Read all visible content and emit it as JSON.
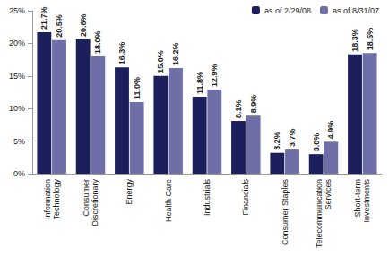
{
  "chart_data": {
    "type": "bar",
    "categories": [
      "Information Technology",
      "Consumer Discretionary",
      "Energy",
      "Health Care",
      "Industrials",
      "Financials",
      "Consumer Staples",
      "Telecommunication Services",
      "Short-term Investments"
    ],
    "series": [
      {
        "name": "as of 2/29/08",
        "color": "#1b1f5c",
        "values": [
          21.7,
          20.6,
          16.3,
          15.0,
          11.8,
          8.1,
          3.2,
          3.0,
          18.3
        ],
        "value_labels": [
          "21.7%",
          "20.6%",
          "16.3%",
          "15.0%",
          "11.8%",
          "8.1%",
          "3.2%",
          "3.0%",
          "18.3%"
        ]
      },
      {
        "name": "as of 8/31/07",
        "color": "#6e6fa6",
        "values": [
          20.5,
          18.0,
          11.0,
          16.2,
          12.9,
          8.9,
          3.7,
          4.9,
          18.5
        ],
        "value_labels": [
          "20.5%",
          "18.0%",
          "11.0%",
          "16.2%",
          "12.9%",
          "8.9%",
          "3.7%",
          "4.9%",
          "18.5%"
        ]
      }
    ],
    "ylim": [
      0,
      25
    ],
    "yticks": [
      {
        "value": 0,
        "label": "0%"
      },
      {
        "value": 5,
        "label": "5%"
      },
      {
        "value": 10,
        "label": "10%"
      },
      {
        "value": 15,
        "label": "15%"
      },
      {
        "value": 20,
        "label": "20%"
      },
      {
        "value": 25,
        "label": "25%"
      }
    ],
    "grid": false,
    "legend": "top-right",
    "data_labels": true
  }
}
